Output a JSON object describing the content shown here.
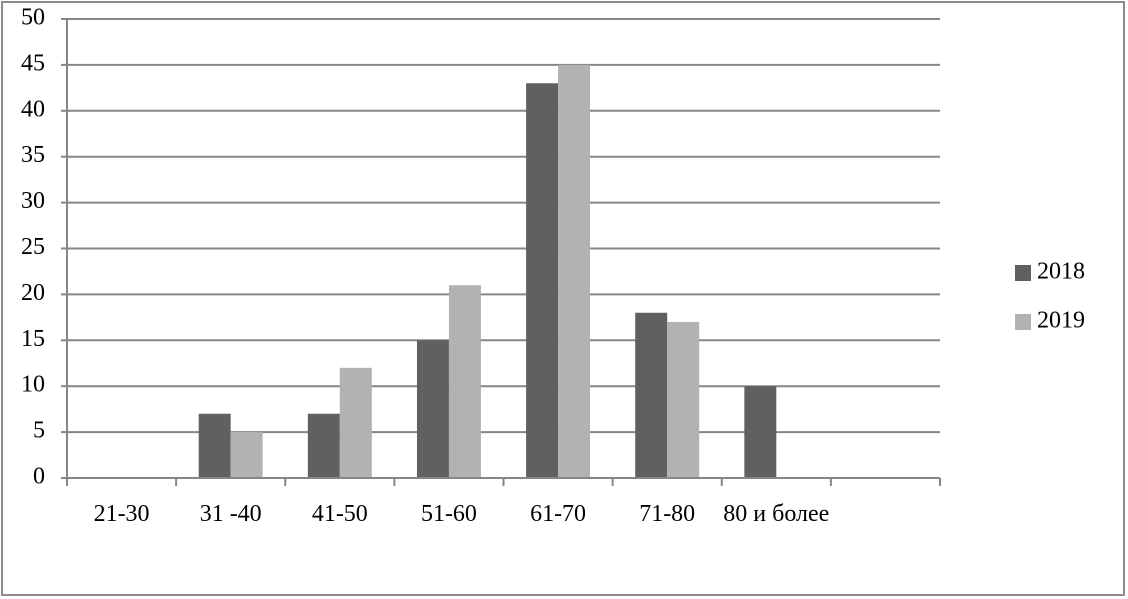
{
  "chart_data": {
    "type": "bar",
    "categories": [
      "21-30",
      "31 -40",
      "41-50",
      "51-60",
      "61-70",
      "71-80",
      "80 и более",
      null
    ],
    "series": [
      {
        "name": "2018",
        "color": "#606060",
        "values": [
          0,
          7,
          7,
          15,
          43,
          18,
          10,
          null
        ]
      },
      {
        "name": "2019",
        "color": "#b2b2b2",
        "values": [
          0,
          5,
          12,
          21,
          45,
          17,
          0,
          null
        ]
      }
    ],
    "ylim": [
      0,
      50
    ],
    "yticks": [
      0,
      5,
      10,
      15,
      20,
      25,
      30,
      35,
      40,
      45,
      50
    ],
    "grid": true,
    "legend": "right"
  }
}
